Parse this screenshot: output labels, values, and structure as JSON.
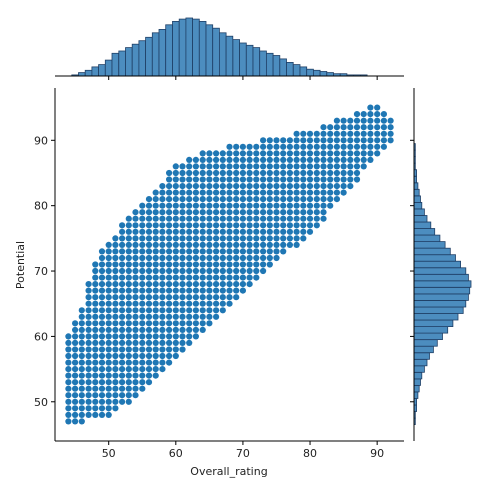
{
  "chart_data": {
    "type": "scatter",
    "subtype": "jointplot",
    "title": "",
    "xlabel": "Overall_rating",
    "ylabel": "Potential",
    "xlim": [
      42,
      94
    ],
    "ylim": [
      44,
      98
    ],
    "xticks": [
      50,
      60,
      70,
      80,
      90
    ],
    "yticks": [
      50,
      60,
      70,
      80,
      90
    ],
    "grid": false,
    "legend": "none",
    "colors": {
      "marker": "#1f77b4",
      "bar_fill": "#4c8dbf",
      "bar_edge": "#1f3f66",
      "axis": "#000000"
    },
    "scatter": {
      "description": "Dense integer grid of points bounded by lower and upper envelopes",
      "x_range": [
        44,
        92
      ],
      "lower_bound": [
        [
          44,
          47
        ],
        [
          50,
          48
        ],
        [
          55,
          52
        ],
        [
          60,
          57
        ],
        [
          65,
          62
        ],
        [
          70,
          67
        ],
        [
          75,
          72
        ],
        [
          80,
          76
        ],
        [
          85,
          82
        ],
        [
          90,
          88
        ],
        [
          92,
          90
        ]
      ],
      "upper_bound": [
        [
          44,
          60
        ],
        [
          46,
          64
        ],
        [
          48,
          71
        ],
        [
          50,
          74
        ],
        [
          53,
          78
        ],
        [
          55,
          80
        ],
        [
          58,
          83
        ],
        [
          60,
          86
        ],
        [
          65,
          88
        ],
        [
          70,
          89
        ],
        [
          75,
          90
        ],
        [
          80,
          91
        ],
        [
          85,
          93
        ],
        [
          90,
          95
        ],
        [
          92,
          93
        ]
      ]
    },
    "marginal_x": {
      "bin_start": 44,
      "bin_width": 1,
      "counts": [
        0,
        1,
        3,
        5,
        8,
        10,
        14,
        20,
        22,
        25,
        28,
        31,
        34,
        38,
        41,
        45,
        48,
        50,
        51,
        50,
        48,
        45,
        42,
        38,
        35,
        32,
        29,
        27,
        25,
        22,
        20,
        18,
        15,
        12,
        10,
        8,
        6,
        5,
        4,
        3,
        2,
        2,
        1,
        1,
        1,
        0,
        0,
        0
      ]
    },
    "marginal_y": {
      "bin_start": 47,
      "bin_width": 1,
      "counts": [
        1,
        1,
        2,
        2,
        3,
        4,
        5,
        6,
        8,
        10,
        12,
        15,
        18,
        22,
        26,
        30,
        34,
        38,
        40,
        42,
        43,
        44,
        42,
        40,
        36,
        32,
        28,
        24,
        20,
        16,
        13,
        10,
        8,
        6,
        5,
        4,
        3,
        2,
        2,
        1,
        1,
        1,
        1,
        0,
        0,
        0,
        0,
        0,
        0
      ]
    }
  }
}
